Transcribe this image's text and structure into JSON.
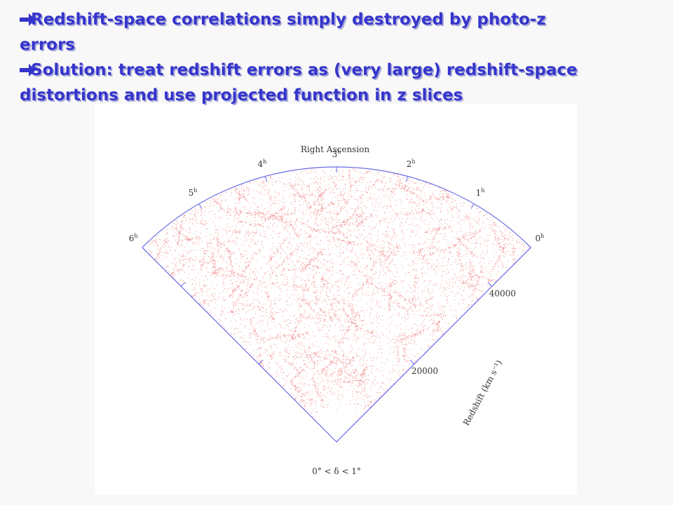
{
  "bullets": [
    "Redshift-space correlations simply destroyed by photo-z errors",
    "Solution: treat redshift errors as (very large) redshift-space distortions and use projected function in z slices"
  ],
  "figure": {
    "title": "Right Ascension",
    "ra_labels": [
      "0",
      "1",
      "2",
      "3",
      "4",
      "5",
      "6"
    ],
    "hour_symbol": "h",
    "redshift_labels": [
      "20000",
      "40000"
    ],
    "redshift_axis_label": "Redshift (km s⁻¹)",
    "declination_range": "0° < δ < 1°"
  }
}
